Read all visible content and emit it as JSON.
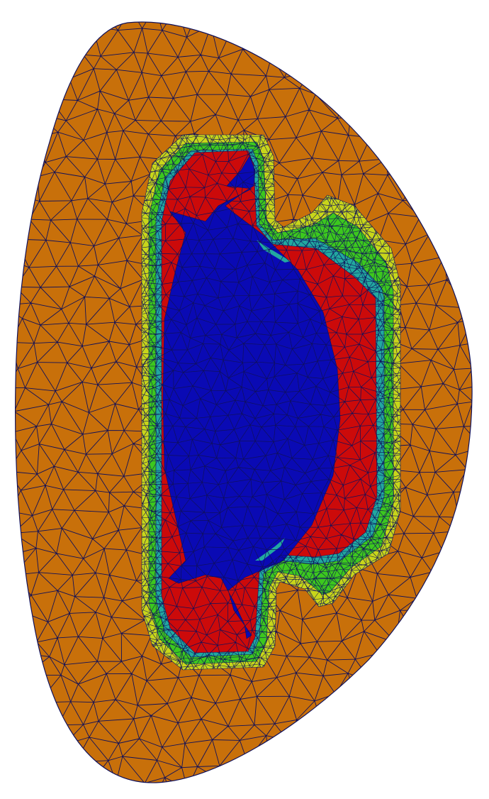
{
  "figure": {
    "kind": "finite-element triangular mesh cross-section",
    "regions": [
      {
        "name": "outer-domain",
        "color": "#c8700a"
      },
      {
        "name": "yellow-boundary-layer",
        "color": "#c8d61a"
      },
      {
        "name": "green-layer",
        "color": "#3cc81e"
      },
      {
        "name": "cyan-thin-layer",
        "color": "#22a8a0"
      },
      {
        "name": "red-layer",
        "color": "#cc0a0a"
      },
      {
        "name": "blue-core",
        "color": "#0a0ab4"
      }
    ],
    "mesh_edge_color": "#10105a"
  }
}
